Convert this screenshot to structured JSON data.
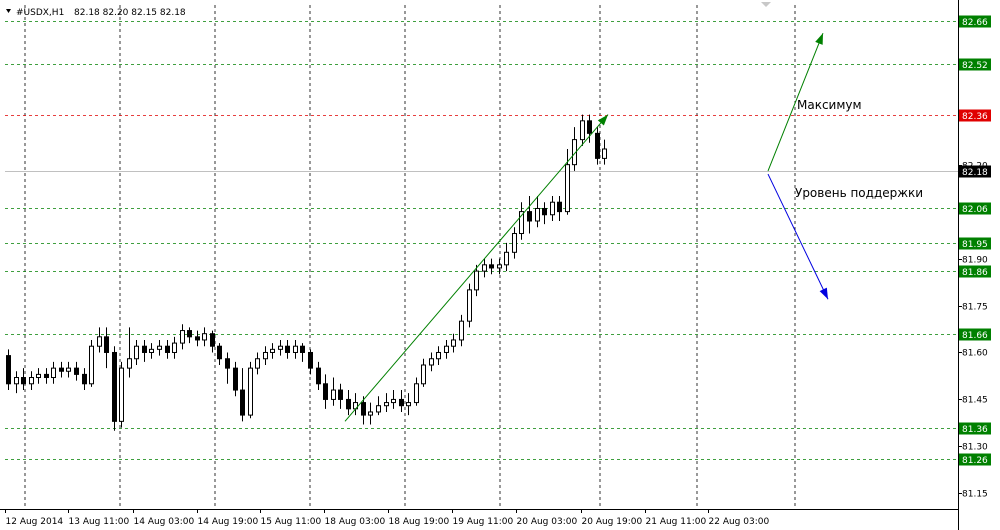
{
  "header": {
    "symbol": "#USDX,H1",
    "ohlc": "82.18 82.20 82.15 82.18"
  },
  "chart_data": {
    "type": "candlestick",
    "ylim": [
      81.1,
      82.71
    ],
    "x_ticks": [
      "12 Aug 2014",
      "13 Aug 11:00",
      "14 Aug 03:00",
      "14 Aug 19:00",
      "15 Aug 11:00",
      "18 Aug 03:00",
      "18 Aug 19:00",
      "19 Aug 11:00",
      "20 Aug 03:00",
      "20 Aug 19:00",
      "21 Aug 11:00",
      "22 Aug 03:00"
    ],
    "y_ticks": [
      "82.20",
      "81.90",
      "81.75",
      "81.60",
      "81.45",
      "81.30",
      "81.15"
    ],
    "y_tick_values": [
      82.2,
      81.9,
      81.75,
      81.6,
      81.45,
      81.3,
      81.15
    ],
    "levels": [
      {
        "price": 82.66,
        "label": "82.66",
        "color": "#008000"
      },
      {
        "price": 82.52,
        "label": "82.52",
        "color": "#008000"
      },
      {
        "price": 82.36,
        "label": "82.36",
        "color": "#e00000"
      },
      {
        "price": 82.18,
        "label": "82.18",
        "color": "#000000",
        "current": true
      },
      {
        "price": 82.06,
        "label": "82.06",
        "color": "#008000"
      },
      {
        "price": 81.95,
        "label": "81.95",
        "color": "#008000"
      },
      {
        "price": 81.86,
        "label": "81.86",
        "color": "#008000"
      },
      {
        "price": 81.66,
        "label": "81.66",
        "color": "#008000"
      },
      {
        "price": 81.36,
        "label": "81.36",
        "color": "#008000"
      },
      {
        "price": 81.26,
        "label": "81.26",
        "color": "#008000"
      }
    ],
    "annotations": [
      {
        "text": "Максимум"
      },
      {
        "text": "Уровень поддержки"
      }
    ],
    "trend_arrows": [
      {
        "color": "#008000",
        "from": [
          0,
          81.38
        ],
        "to": [
          58,
          82.36
        ]
      },
      {
        "color": "#008000",
        "from": [
          74,
          82.18
        ],
        "to": [
          80,
          82.62
        ]
      },
      {
        "color": "#0000e0",
        "from": [
          74,
          82.17
        ],
        "to": [
          80,
          81.77
        ]
      }
    ],
    "candles": [
      [
        81.59,
        81.5,
        81.61,
        81.48
      ],
      [
        81.5,
        81.52,
        81.54,
        81.47
      ],
      [
        81.52,
        81.5,
        81.55,
        81.48
      ],
      [
        81.5,
        81.52,
        81.54,
        81.48
      ],
      [
        81.52,
        81.53,
        81.55,
        81.5
      ],
      [
        81.53,
        81.52,
        81.55,
        81.5
      ],
      [
        81.52,
        81.55,
        81.57,
        81.5
      ],
      [
        81.55,
        81.54,
        81.57,
        81.52
      ],
      [
        81.54,
        81.55,
        81.57,
        81.52
      ],
      [
        81.55,
        81.53,
        81.57,
        81.51
      ],
      [
        81.53,
        81.5,
        81.55,
        81.48
      ],
      [
        81.5,
        81.62,
        81.64,
        81.49
      ],
      [
        81.62,
        81.65,
        81.68,
        81.6
      ],
      [
        81.65,
        81.6,
        81.68,
        81.55
      ],
      [
        81.6,
        81.38,
        81.62,
        81.35
      ],
      [
        81.38,
        81.55,
        81.57,
        81.36
      ],
      [
        81.55,
        81.58,
        81.68,
        81.52
      ],
      [
        81.58,
        81.62,
        81.64,
        81.56
      ],
      [
        81.62,
        81.6,
        81.64,
        81.57
      ],
      [
        81.6,
        81.61,
        81.63,
        81.58
      ],
      [
        81.61,
        81.62,
        81.64,
        81.59
      ],
      [
        81.62,
        81.6,
        81.64,
        81.58
      ],
      [
        81.6,
        81.63,
        81.65,
        81.58
      ],
      [
        81.63,
        81.67,
        81.69,
        81.61
      ],
      [
        81.67,
        81.65,
        81.68,
        81.63
      ],
      [
        81.65,
        81.64,
        81.67,
        81.62
      ],
      [
        81.64,
        81.66,
        81.68,
        81.62
      ],
      [
        81.66,
        81.62,
        81.67,
        81.6
      ],
      [
        81.62,
        81.58,
        81.63,
        81.56
      ],
      [
        81.58,
        81.55,
        81.6,
        81.5
      ],
      [
        81.55,
        81.48,
        81.57,
        81.46
      ],
      [
        81.48,
        81.4,
        81.55,
        81.38
      ],
      [
        81.4,
        81.55,
        81.57,
        81.39
      ],
      [
        81.55,
        81.58,
        81.6,
        81.53
      ],
      [
        81.58,
        81.6,
        81.62,
        81.56
      ],
      [
        81.6,
        81.61,
        81.63,
        81.58
      ],
      [
        81.61,
        81.62,
        81.64,
        81.59
      ],
      [
        81.62,
        81.6,
        81.64,
        81.58
      ],
      [
        81.6,
        81.62,
        81.64,
        81.58
      ],
      [
        81.62,
        81.6,
        81.63,
        81.57
      ],
      [
        81.6,
        81.55,
        81.61,
        81.53
      ],
      [
        81.55,
        81.5,
        81.57,
        81.48
      ],
      [
        81.5,
        81.45,
        81.53,
        81.42
      ],
      [
        81.45,
        81.48,
        81.52,
        81.43
      ],
      [
        81.48,
        81.45,
        81.5,
        81.42
      ],
      [
        81.45,
        81.42,
        81.48,
        81.4
      ],
      [
        81.42,
        81.44,
        81.47,
        81.4
      ],
      [
        81.44,
        81.4,
        81.46,
        81.37
      ],
      [
        81.4,
        81.41,
        81.44,
        81.37
      ],
      [
        81.41,
        81.43,
        81.46,
        81.4
      ],
      [
        81.43,
        81.44,
        81.47,
        81.41
      ],
      [
        81.44,
        81.45,
        81.48,
        81.42
      ],
      [
        81.45,
        81.43,
        81.48,
        81.41
      ],
      [
        81.43,
        81.44,
        81.47,
        81.4
      ],
      [
        81.44,
        81.5,
        81.52,
        81.43
      ],
      [
        81.5,
        81.56,
        81.58,
        81.49
      ],
      [
        81.56,
        81.58,
        81.6,
        81.54
      ],
      [
        81.58,
        81.6,
        81.62,
        81.56
      ],
      [
        81.6,
        81.62,
        81.64,
        81.58
      ],
      [
        81.62,
        81.64,
        81.66,
        81.6
      ],
      [
        81.64,
        81.7,
        81.72,
        81.62
      ],
      [
        81.7,
        81.8,
        81.82,
        81.68
      ],
      [
        81.8,
        81.86,
        81.88,
        81.78
      ],
      [
        81.86,
        81.88,
        81.9,
        81.84
      ],
      [
        81.88,
        81.87,
        81.9,
        81.85
      ],
      [
        81.87,
        81.88,
        81.9,
        81.85
      ],
      [
        81.88,
        81.92,
        81.95,
        81.86
      ],
      [
        81.92,
        81.98,
        82.0,
        81.9
      ],
      [
        81.98,
        82.05,
        82.08,
        81.96
      ],
      [
        82.05,
        82.02,
        82.1,
        81.98
      ],
      [
        82.02,
        82.06,
        82.1,
        82.0
      ],
      [
        82.06,
        82.04,
        82.08,
        82.01
      ],
      [
        82.04,
        82.08,
        82.1,
        82.02
      ],
      [
        82.08,
        82.05,
        82.1,
        82.02
      ],
      [
        82.05,
        82.2,
        82.25,
        82.04
      ],
      [
        82.2,
        82.28,
        82.32,
        82.18
      ],
      [
        82.28,
        82.34,
        82.36,
        82.26
      ],
      [
        82.34,
        82.3,
        82.36,
        82.27
      ],
      [
        82.3,
        82.22,
        82.32,
        82.2
      ],
      [
        82.22,
        82.25,
        82.28,
        82.2
      ]
    ]
  }
}
